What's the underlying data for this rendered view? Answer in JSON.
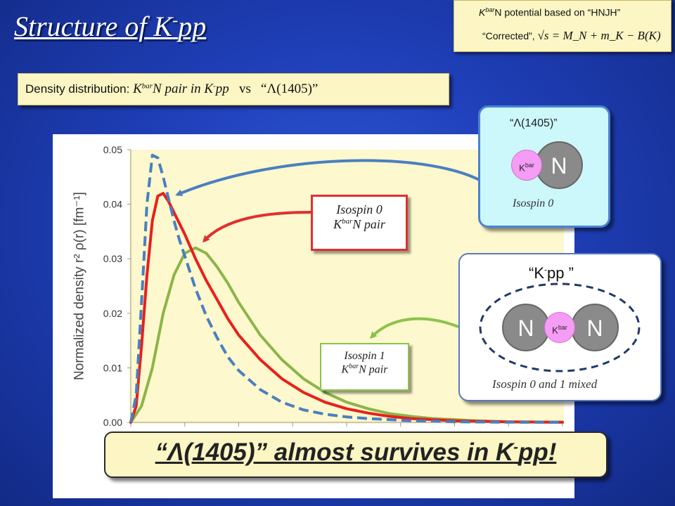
{
  "slide": {
    "title_main": "Structure of K",
    "title_sup": "-",
    "title_end": "pp"
  },
  "potential_note": {
    "kbar": "K",
    "kbar_sup": "bar",
    "line1_rest": "N potential based on “HNJH”",
    "line2_text": "“Corrected”,",
    "formula": "√s = M_N + m_K − B(K)"
  },
  "density_box": {
    "label": "Density distribution:",
    "k": "K",
    "k_sup": "bar",
    "n_pair": "N pair in K",
    "minus": "-",
    "pp": "pp",
    "vs": "vs",
    "lambda": "“Λ(1405)”"
  },
  "chart_data": {
    "type": "line",
    "ylabel": "Normalized density r² ρ(r) [fm⁻¹]",
    "ylim": [
      0,
      0.05
    ],
    "yticks": [
      "0.00",
      "0.01",
      "0.02",
      "0.03",
      "0.04",
      "0.05"
    ],
    "xlim": [
      0,
      4
    ],
    "grid": false,
    "series": [
      {
        "name": "Isospin 0 KbarN pair",
        "color": "#e8201c",
        "style": "solid",
        "x": [
          0,
          0.05,
          0.1,
          0.15,
          0.2,
          0.25,
          0.3,
          0.35,
          0.4,
          0.45,
          0.5,
          0.6,
          0.7,
          0.8,
          0.9,
          1.0,
          1.2,
          1.4,
          1.6,
          1.8,
          2.0,
          2.2,
          2.4,
          2.6,
          2.8,
          3.0,
          3.2,
          3.5,
          3.8,
          4.0
        ],
        "y": [
          0,
          0.003,
          0.014,
          0.027,
          0.037,
          0.0415,
          0.042,
          0.0405,
          0.0385,
          0.0365,
          0.0345,
          0.03,
          0.026,
          0.0225,
          0.019,
          0.016,
          0.0115,
          0.008,
          0.0055,
          0.0037,
          0.0025,
          0.0017,
          0.0011,
          0.0007,
          0.0005,
          0.0003,
          0.0002,
          0.0001,
          5e-05,
          2e-05
        ]
      },
      {
        "name": "Isospin 1 KbarN pair",
        "color": "#8bb549",
        "style": "solid",
        "x": [
          0,
          0.1,
          0.2,
          0.3,
          0.4,
          0.5,
          0.6,
          0.7,
          0.8,
          0.9,
          1.0,
          1.2,
          1.4,
          1.6,
          1.8,
          2.0,
          2.2,
          2.4,
          2.6,
          2.8,
          3.0,
          3.2,
          3.5,
          3.8,
          4.0
        ],
        "y": [
          0,
          0.003,
          0.01,
          0.02,
          0.027,
          0.031,
          0.032,
          0.031,
          0.0285,
          0.0255,
          0.022,
          0.016,
          0.0115,
          0.008,
          0.0055,
          0.0037,
          0.0025,
          0.0016,
          0.0011,
          0.0007,
          0.0005,
          0.0003,
          0.0001,
          5e-05,
          2e-05
        ]
      },
      {
        "name": "Λ(1405)",
        "color": "#4a7fc1",
        "style": "dashed",
        "x": [
          0,
          0.05,
          0.1,
          0.15,
          0.2,
          0.25,
          0.3,
          0.35,
          0.4,
          0.45,
          0.5,
          0.6,
          0.7,
          0.8,
          0.9,
          1.0,
          1.2,
          1.4,
          1.6,
          1.8,
          2.0,
          2.2,
          2.4,
          2.6,
          2.8,
          3.0,
          3.5,
          4.0
        ],
        "y": [
          0,
          0.005,
          0.022,
          0.04,
          0.049,
          0.0485,
          0.045,
          0.041,
          0.037,
          0.0335,
          0.0305,
          0.0245,
          0.0195,
          0.0155,
          0.012,
          0.0095,
          0.006,
          0.0037,
          0.0023,
          0.0015,
          0.001,
          0.0007,
          0.0005,
          0.0003,
          0.0002,
          0.0001,
          3e-05,
          1e-05
        ]
      }
    ]
  },
  "annotations": {
    "iso0": {
      "line1": "Isospin 0",
      "k": "K",
      "sup": "bar",
      "rest": "N pair"
    },
    "iso1": {
      "line1": "Isospin 1",
      "k": "K",
      "sup": "bar",
      "rest": "N pair"
    }
  },
  "lambda_diagram": {
    "title": "“Λ(1405)”",
    "kaon": "K",
    "kaon_sup": "bar",
    "nucleon": "N",
    "isospin": "Isospin 0"
  },
  "kpp_diagram": {
    "title_open": "“K",
    "title_sup": "-",
    "title_close": "pp ”",
    "nucleon_left": "N",
    "nucleon_right": "N",
    "kaon": "K",
    "kaon_sup": "bar",
    "isospin": "Isospin 0 and 1 mixed"
  },
  "banner": {
    "text_start": "“Λ(1405)” almost survives in K",
    "sup": "-",
    "text_end": "pp!"
  },
  "colors": {
    "background": "#1f3fb8",
    "note_fill": "#fbf6c4",
    "isospin0": "#e8201c",
    "isospin1": "#8bb549",
    "lambda": "#4a7fc1",
    "kaon": "#f59cf5",
    "nucleon": "#8a8a8a"
  }
}
